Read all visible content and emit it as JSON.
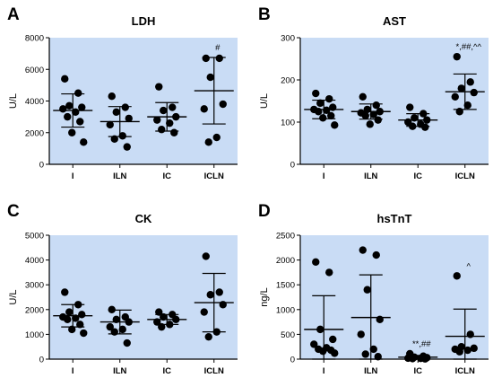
{
  "chart_data": [
    {
      "type": "scatter",
      "panel": "A",
      "title": "LDH",
      "ylabel": "U/L",
      "ylim": [
        0,
        8000
      ],
      "yticks": [
        0,
        2000,
        4000,
        6000,
        8000
      ],
      "categories": [
        "I",
        "ILN",
        "IC",
        "ICLN"
      ],
      "points": [
        [
          5400,
          4500,
          3700,
          3600,
          3500,
          3300,
          3000,
          2700,
          2000,
          1400
        ],
        [
          4300,
          3600,
          3300,
          2900,
          2500,
          1800,
          1600,
          1100
        ],
        [
          4900,
          3600,
          3400,
          3000,
          2800,
          2600,
          2200,
          2000
        ],
        [
          6700,
          6700,
          5500,
          3800,
          3500,
          1700,
          1400
        ]
      ],
      "mean": [
        3400,
        2700,
        3000,
        4650
      ],
      "sd": [
        1050,
        950,
        900,
        2100
      ],
      "annotations": [
        "",
        "",
        "",
        "#"
      ]
    },
    {
      "type": "scatter",
      "panel": "B",
      "title": "AST",
      "ylabel": "U/L",
      "ylim": [
        0,
        300
      ],
      "yticks": [
        0,
        100,
        200,
        300
      ],
      "categories": [
        "I",
        "ILN",
        "IC",
        "ICLN"
      ],
      "points": [
        [
          168,
          155,
          145,
          135,
          130,
          128,
          125,
          115,
          110,
          93
        ],
        [
          160,
          140,
          130,
          125,
          122,
          118,
          115,
          105,
          95
        ],
        [
          135,
          120,
          110,
          105,
          100,
          95,
          90,
          88
        ],
        [
          255,
          195,
          180,
          170,
          160,
          140,
          125
        ]
      ],
      "mean": [
        130,
        125,
        105,
        172
      ],
      "sd": [
        22,
        18,
        15,
        42
      ],
      "annotations": [
        "",
        "",
        "",
        "*,##,^^"
      ]
    },
    {
      "type": "scatter",
      "panel": "C",
      "title": "CK",
      "ylabel": "U/L",
      "ylim": [
        0,
        5000
      ],
      "yticks": [
        0,
        1000,
        2000,
        3000,
        4000,
        5000
      ],
      "categories": [
        "I",
        "ILN",
        "IC",
        "ICLN"
      ],
      "points": [
        [
          2700,
          2200,
          1900,
          1800,
          1700,
          1650,
          1600,
          1400,
          1200,
          1050
        ],
        [
          2000,
          1700,
          1600,
          1500,
          1300,
          1200,
          1100,
          650
        ],
        [
          1900,
          1800,
          1700,
          1600,
          1500,
          1400,
          1300
        ],
        [
          4150,
          2700,
          2600,
          2200,
          1900,
          1100,
          900
        ]
      ],
      "mean": [
        1750,
        1500,
        1600,
        2280
      ],
      "sd": [
        450,
        480,
        200,
        1180
      ],
      "annotations": [
        "",
        "",
        "",
        ""
      ]
    },
    {
      "type": "scatter",
      "panel": "D",
      "title": "hsTnT",
      "ylabel": "ng/L",
      "ylim": [
        0,
        2500
      ],
      "yticks": [
        0,
        500,
        1000,
        1500,
        2000,
        2500
      ],
      "categories": [
        "I",
        "ILN",
        "IC",
        "ICLN"
      ],
      "points": [
        [
          1960,
          1750,
          600,
          400,
          300,
          230,
          200,
          180,
          160,
          120
        ],
        [
          2200,
          2100,
          1400,
          800,
          500,
          200,
          100,
          50
        ],
        [
          110,
          60,
          40,
          30,
          20,
          15,
          10,
          5
        ],
        [
          1680,
          500,
          250,
          220,
          200,
          180,
          150
        ]
      ],
      "mean": [
        600,
        840,
        40,
        460
      ],
      "sd": [
        680,
        860,
        35,
        550
      ],
      "annotations": [
        "",
        "",
        "**,##",
        "^"
      ]
    }
  ]
}
